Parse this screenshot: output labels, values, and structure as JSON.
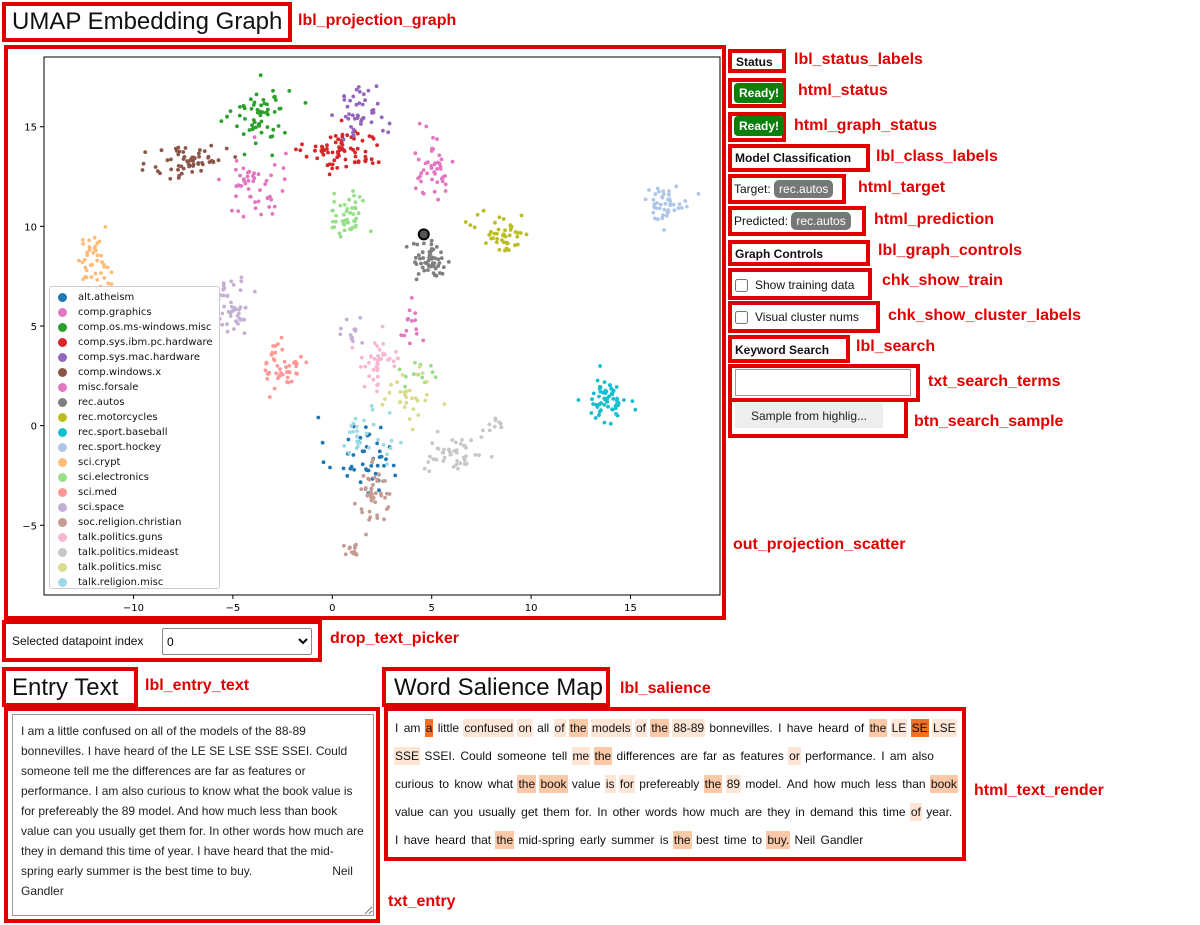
{
  "annotations": {
    "projection_graph": "lbl_projection_graph",
    "status_labels": "lbl_status_labels",
    "status": "html_status",
    "graph_status": "html_graph_status",
    "class_labels": "lbl_class_labels",
    "target": "html_target",
    "prediction": "html_prediction",
    "graph_controls": "lbl_graph_controls",
    "show_train": "chk_show_train",
    "show_cluster_labels": "chk_show_cluster_labels",
    "search": "lbl_search",
    "search_terms": "txt_search_terms",
    "search_sample": "btn_search_sample",
    "projection_scatter": "out_projection_scatter",
    "text_picker": "drop_text_picker",
    "entry_text": "lbl_entry_text",
    "salience": "lbl_salience",
    "text_render": "html_text_render",
    "entry": "txt_entry"
  },
  "headings": {
    "projection": "UMAP Embedding Graph",
    "entry": "Entry Text",
    "salience": "Word Salience Map"
  },
  "status": {
    "label": "Status",
    "status_value": "Ready!",
    "graph_status_value": "Ready!"
  },
  "classification": {
    "label": "Model Classification",
    "target_label": "Target:",
    "target_value": "rec.autos",
    "predicted_label": "Predicted:",
    "predicted_value": "rec.autos"
  },
  "graph_controls": {
    "label": "Graph Controls",
    "show_train_label": "Show training data",
    "cluster_nums_label": "Visual cluster nums"
  },
  "search": {
    "label": "Keyword Search",
    "input_value": "",
    "button_label": "Sample from highlig..."
  },
  "picker": {
    "label": "Selected datapoint index",
    "value": "0"
  },
  "entry_text": "I am a little confused on all of the models of the 88-89 bonnevilles. I have heard of the LE SE LSE SSE SSEI. Could someone tell me the differences are far as features or performance. I am also curious to know what the book value is for prefereably the 89 model. And how much less than book value can you usually get them for. In other words how much are they in demand this time of year. I have heard that the mid-spring early summer is the best time to buy.                        Neil Gandler",
  "salience_words": [
    {
      "t": "I",
      "s": 0
    },
    {
      "t": "am",
      "s": 0
    },
    {
      "t": "a",
      "s": 3
    },
    {
      "t": "little",
      "s": 0
    },
    {
      "t": "confused",
      "s": 1
    },
    {
      "t": "on",
      "s": 1
    },
    {
      "t": "all",
      "s": 0
    },
    {
      "t": "of",
      "s": 1
    },
    {
      "t": "the",
      "s": 2
    },
    {
      "t": "models",
      "s": 1
    },
    {
      "t": "of",
      "s": 1
    },
    {
      "t": "the",
      "s": 2
    },
    {
      "t": "88-89",
      "s": 1
    },
    {
      "t": "bonnevilles.",
      "s": 0
    },
    {
      "t": "I",
      "s": 0
    },
    {
      "t": "have",
      "s": 0
    },
    {
      "t": "heard",
      "s": 0
    },
    {
      "t": "of",
      "s": 0
    },
    {
      "t": "the",
      "s": 2
    },
    {
      "t": "LE",
      "s": 1
    },
    {
      "t": "SE",
      "s": 3
    },
    {
      "t": "LSE",
      "s": 1
    },
    {
      "t": "SSE",
      "s": 1
    },
    {
      "t": "SSEI.",
      "s": 0
    },
    {
      "t": "Could",
      "s": 0
    },
    {
      "t": "someone",
      "s": 0
    },
    {
      "t": "tell",
      "s": 0
    },
    {
      "t": "me",
      "s": 1
    },
    {
      "t": "the",
      "s": 2
    },
    {
      "t": "differences",
      "s": 0
    },
    {
      "t": "are",
      "s": 0
    },
    {
      "t": "far",
      "s": 0
    },
    {
      "t": "as",
      "s": 0
    },
    {
      "t": "features",
      "s": 0
    },
    {
      "t": "or",
      "s": 1
    },
    {
      "t": "performance.",
      "s": 0
    },
    {
      "t": "I",
      "s": 0
    },
    {
      "t": "am",
      "s": 0
    },
    {
      "t": "also",
      "s": 0
    },
    {
      "t": "curious",
      "s": 0
    },
    {
      "t": "to",
      "s": 0
    },
    {
      "t": "know",
      "s": 0
    },
    {
      "t": "what",
      "s": 0
    },
    {
      "t": "the",
      "s": 2
    },
    {
      "t": "book",
      "s": 2
    },
    {
      "t": "value",
      "s": 0
    },
    {
      "t": "is",
      "s": 1
    },
    {
      "t": "for",
      "s": 1
    },
    {
      "t": "prefereably",
      "s": 0
    },
    {
      "t": "the",
      "s": 2
    },
    {
      "t": "89",
      "s": 1
    },
    {
      "t": "model.",
      "s": 0
    },
    {
      "t": "And",
      "s": 0
    },
    {
      "t": "how",
      "s": 0
    },
    {
      "t": "much",
      "s": 0
    },
    {
      "t": "less",
      "s": 0
    },
    {
      "t": "than",
      "s": 0
    },
    {
      "t": "book",
      "s": 2
    },
    {
      "t": "value",
      "s": 0
    },
    {
      "t": "can",
      "s": 0
    },
    {
      "t": "you",
      "s": 0
    },
    {
      "t": "usually",
      "s": 0
    },
    {
      "t": "get",
      "s": 0
    },
    {
      "t": "them",
      "s": 0
    },
    {
      "t": "for.",
      "s": 0
    },
    {
      "t": "In",
      "s": 0
    },
    {
      "t": "other",
      "s": 0
    },
    {
      "t": "words",
      "s": 0
    },
    {
      "t": "how",
      "s": 0
    },
    {
      "t": "much",
      "s": 0
    },
    {
      "t": "are",
      "s": 0
    },
    {
      "t": "they",
      "s": 0
    },
    {
      "t": "in",
      "s": 0
    },
    {
      "t": "demand",
      "s": 0
    },
    {
      "t": "this",
      "s": 0
    },
    {
      "t": "time",
      "s": 0
    },
    {
      "t": "of",
      "s": 1
    },
    {
      "t": "year.",
      "s": 0
    },
    {
      "t": "I",
      "s": 0
    },
    {
      "t": "have",
      "s": 0
    },
    {
      "t": "heard",
      "s": 0
    },
    {
      "t": "that",
      "s": 0
    },
    {
      "t": "the",
      "s": 2
    },
    {
      "t": "mid-spring",
      "s": 0
    },
    {
      "t": "early",
      "s": 0
    },
    {
      "t": "summer",
      "s": 0
    },
    {
      "t": "is",
      "s": 0
    },
    {
      "t": "the",
      "s": 2
    },
    {
      "t": "best",
      "s": 0
    },
    {
      "t": "time",
      "s": 0
    },
    {
      "t": "to",
      "s": 0
    },
    {
      "t": "buy.",
      "s": 2
    },
    {
      "t": "Neil",
      "s": 0
    },
    {
      "t": "Gandler",
      "s": 0
    }
  ],
  "salience_colors": [
    "#ffffff",
    "#fde6d6",
    "#fbc8a8",
    "#f07025"
  ],
  "chart_data": {
    "type": "scatter",
    "xlim": [
      -14.5,
      19.5
    ],
    "ylim": [
      -8.5,
      18.5
    ],
    "xticks": [
      -10,
      -5,
      0,
      5,
      10,
      15
    ],
    "yticks": [
      -5,
      0,
      5,
      10,
      15
    ],
    "xtick_labels": [
      "−10",
      "−5",
      "0",
      "5",
      "10",
      "15"
    ],
    "ytick_labels": [
      "−5",
      "0",
      "5",
      "10",
      "15"
    ],
    "legend_position": "lower-left",
    "selected_point": {
      "x": 4.6,
      "y": 9.6
    },
    "series": [
      {
        "name": "alt.atheism",
        "color": "#1f77b4",
        "clusters": [
          {
            "x": 1.5,
            "y": -1.5,
            "sx": 1.3,
            "sy": 1.4,
            "n": 45
          }
        ]
      },
      {
        "name": "comp.graphics",
        "color": "#e377c2",
        "clusters": [
          {
            "x": -3.9,
            "y": 12.0,
            "sx": 1.1,
            "sy": 1.4,
            "n": 50
          },
          {
            "x": 3.8,
            "y": 5.3,
            "sx": 0.6,
            "sy": 0.8,
            "n": 14
          }
        ]
      },
      {
        "name": "comp.os.ms-windows.misc",
        "color": "#2ca02c",
        "clusters": [
          {
            "x": -3.6,
            "y": 15.6,
            "sx": 1.0,
            "sy": 1.1,
            "n": 60
          }
        ]
      },
      {
        "name": "comp.sys.ibm.pc.hardware",
        "color": "#d62728",
        "clusters": [
          {
            "x": 0.6,
            "y": 13.8,
            "sx": 1.4,
            "sy": 0.8,
            "n": 75
          }
        ]
      },
      {
        "name": "comp.sys.mac.hardware",
        "color": "#9467bd",
        "clusters": [
          {
            "x": 1.5,
            "y": 15.8,
            "sx": 0.9,
            "sy": 0.9,
            "n": 45
          }
        ]
      },
      {
        "name": "comp.windows.x",
        "color": "#8c564b",
        "clusters": [
          {
            "x": -7.2,
            "y": 13.3,
            "sx": 1.3,
            "sy": 0.8,
            "n": 60
          }
        ]
      },
      {
        "name": "misc.forsale",
        "color": "#e377c2",
        "clusters": [
          {
            "x": 5.0,
            "y": 13.0,
            "sx": 0.8,
            "sy": 1.1,
            "n": 45
          }
        ]
      },
      {
        "name": "rec.autos",
        "color": "#7f7f7f",
        "clusters": [
          {
            "x": 5.0,
            "y": 8.2,
            "sx": 0.7,
            "sy": 0.7,
            "n": 55
          }
        ]
      },
      {
        "name": "rec.motorcycles",
        "color": "#bcbd22",
        "clusters": [
          {
            "x": 8.6,
            "y": 9.7,
            "sx": 1.0,
            "sy": 0.7,
            "n": 45
          }
        ]
      },
      {
        "name": "rec.sport.baseball",
        "color": "#17becf",
        "clusters": [
          {
            "x": 13.8,
            "y": 1.3,
            "sx": 0.7,
            "sy": 0.8,
            "n": 60
          }
        ]
      },
      {
        "name": "rec.sport.hockey",
        "color": "#aec7e8",
        "clusters": [
          {
            "x": 16.8,
            "y": 11.2,
            "sx": 0.8,
            "sy": 0.6,
            "n": 45
          }
        ]
      },
      {
        "name": "sci.crypt",
        "color": "#ffbb78",
        "clusters": [
          {
            "x": -12.0,
            "y": 8.2,
            "sx": 0.6,
            "sy": 1.0,
            "n": 45
          }
        ]
      },
      {
        "name": "sci.electronics",
        "color": "#98df8a",
        "clusters": [
          {
            "x": 0.8,
            "y": 10.5,
            "sx": 0.7,
            "sy": 0.9,
            "n": 45
          },
          {
            "x": 4.4,
            "y": 2.6,
            "sx": 0.8,
            "sy": 0.5,
            "n": 12
          }
        ]
      },
      {
        "name": "sci.med",
        "color": "#ff9896",
        "clusters": [
          {
            "x": -2.5,
            "y": 3.0,
            "sx": 0.6,
            "sy": 0.9,
            "n": 45
          }
        ]
      },
      {
        "name": "sci.space",
        "color": "#c5b0d5",
        "clusters": [
          {
            "x": -5.0,
            "y": 6.0,
            "sx": 0.7,
            "sy": 1.0,
            "n": 45
          },
          {
            "x": 1.0,
            "y": 5.0,
            "sx": 0.6,
            "sy": 0.7,
            "n": 12
          }
        ]
      },
      {
        "name": "soc.religion.christian",
        "color": "#c49c94",
        "clusters": [
          {
            "x": 2.1,
            "y": -3.5,
            "sx": 0.6,
            "sy": 1.0,
            "n": 45
          },
          {
            "x": 1.0,
            "y": -6.3,
            "sx": 0.4,
            "sy": 0.3,
            "n": 12
          }
        ]
      },
      {
        "name": "talk.politics.guns",
        "color": "#f7b6d2",
        "clusters": [
          {
            "x": 2.3,
            "y": 3.2,
            "sx": 0.9,
            "sy": 0.9,
            "n": 40
          }
        ]
      },
      {
        "name": "talk.politics.mideast",
        "color": "#c7c7c7",
        "clusters": [
          {
            "x": 6.2,
            "y": -1.5,
            "sx": 1.0,
            "sy": 0.7,
            "n": 45
          },
          {
            "x": 8.1,
            "y": 0.0,
            "sx": 0.4,
            "sy": 0.3,
            "n": 10
          }
        ]
      },
      {
        "name": "talk.politics.misc",
        "color": "#dbdb8d",
        "clusters": [
          {
            "x": 3.8,
            "y": 1.5,
            "sx": 0.9,
            "sy": 0.9,
            "n": 30
          }
        ]
      },
      {
        "name": "talk.religion.misc",
        "color": "#9edae5",
        "clusters": [
          {
            "x": 1.5,
            "y": -0.5,
            "sx": 1.0,
            "sy": 0.9,
            "n": 30
          }
        ]
      }
    ]
  }
}
